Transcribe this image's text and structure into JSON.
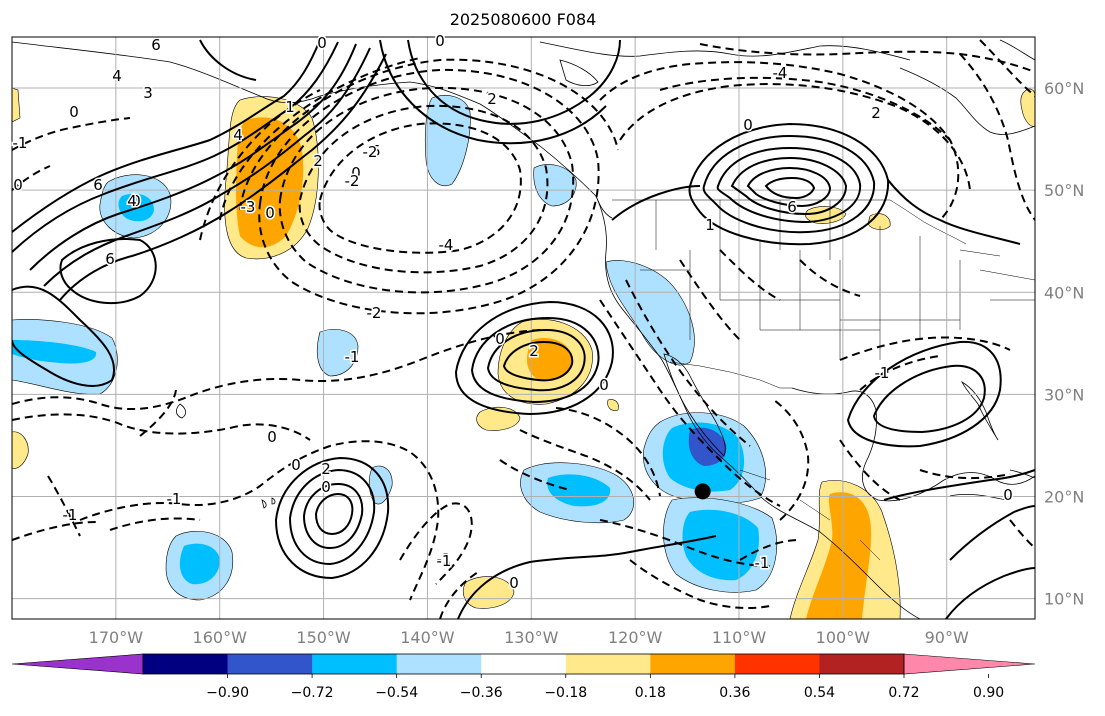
{
  "title": "2025080600 F084",
  "lon_labels": [
    "170°W",
    "160°W",
    "150°W",
    "140°W",
    "130°W",
    "120°W",
    "110°W",
    "100°W",
    "90°W"
  ],
  "lat_labels": [
    "60°N",
    "50°N",
    "40°N",
    "30°N",
    "20°N",
    "10°N"
  ],
  "colorbar": {
    "colors": [
      "#9933cc",
      "#000080",
      "#3355cc",
      "#00bfff",
      "#aee1ff",
      "#ffffff",
      "#ffe98a",
      "#ffa500",
      "#ff3300",
      "#b22222",
      "#ff88aa"
    ],
    "tick_labels": [
      "−0.90",
      "−0.72",
      "−0.54",
      "−0.36",
      "−0.18",
      "0.18",
      "0.36",
      "0.54",
      "0.72",
      "0.90"
    ]
  },
  "contour_labels": [
    "6",
    "4",
    "3",
    "0",
    "1",
    "0",
    "6",
    "4",
    "0",
    "2",
    "0",
    "5",
    "0",
    "-2",
    "-3",
    "-4",
    "-2",
    "-1",
    "0",
    "2",
    "0",
    "-4",
    "0",
    "2",
    "6",
    "1",
    "6",
    "4",
    "-1",
    "-2",
    "0",
    "2",
    "2",
    "0",
    "0",
    "-1",
    "-1",
    "0",
    "0",
    "-1",
    "-1",
    "0",
    "-1",
    "0",
    "-1"
  ],
  "storm_marker": {
    "lon": -113.5,
    "lat": 20.5
  },
  "colors": {
    "land_border": "#000000",
    "grid": "#b0b0b0",
    "axis_label": "#808080"
  }
}
